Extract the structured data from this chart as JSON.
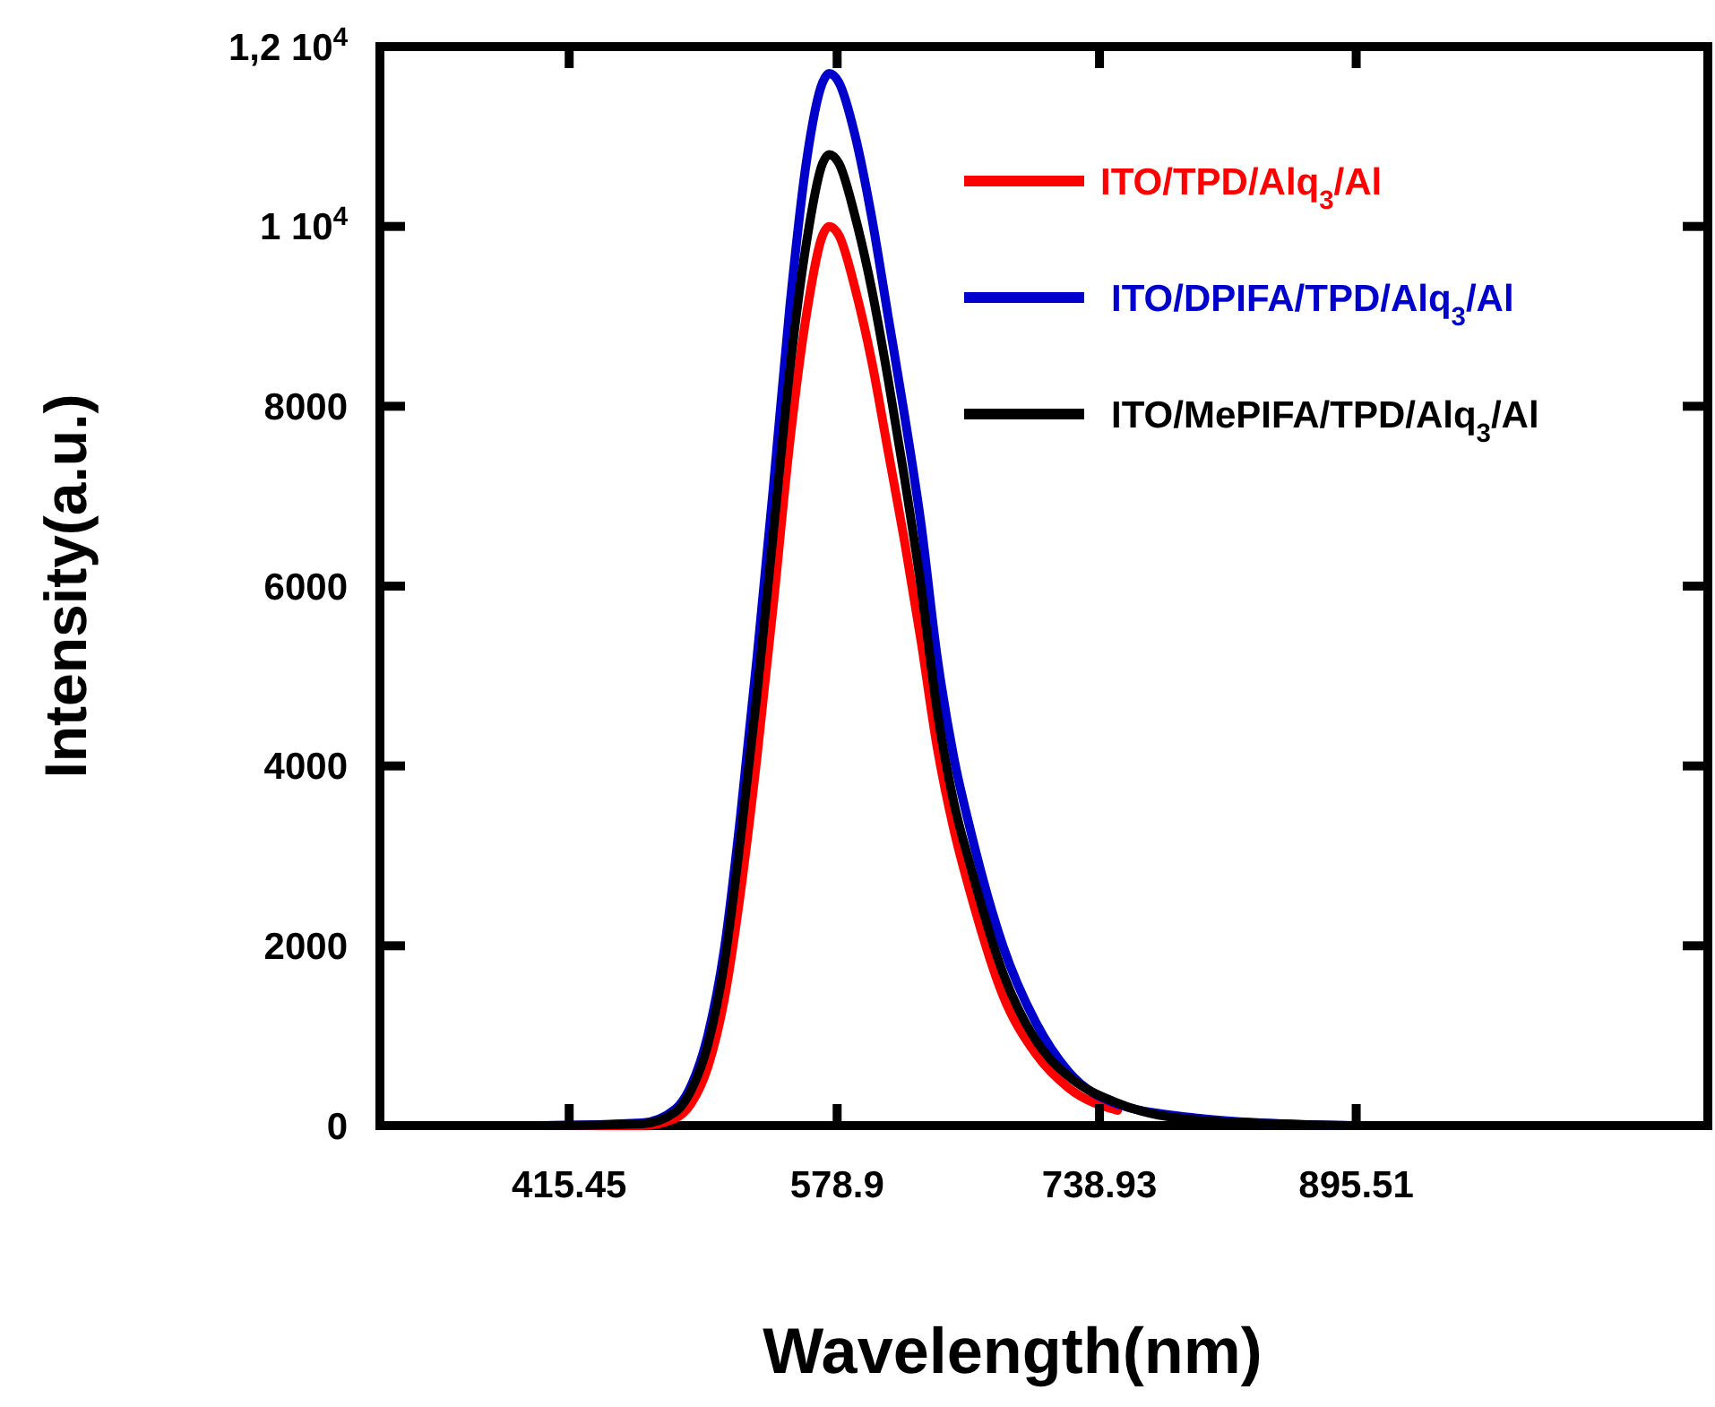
{
  "chart_data": {
    "type": "line",
    "xlabel": "Wavelength(nm)",
    "ylabel": "Intensity(a.u.)",
    "x": [
      300,
      400,
      460,
      480,
      490,
      500,
      510,
      520,
      530,
      540,
      550,
      560,
      570,
      574,
      580,
      590,
      600,
      610,
      620,
      630,
      640,
      650,
      660,
      680,
      700,
      720,
      750,
      800,
      850,
      900,
      1000,
      1110
    ],
    "xlim": [
      300,
      1110
    ],
    "xticks": [
      415.45,
      578.9,
      738.93,
      895.51
    ],
    "ylim": [
      0,
      12000
    ],
    "yticks": [
      0,
      2000,
      4000,
      6000,
      8000,
      {
        "value": 10000,
        "label": "1 10$^{4}$"
      },
      {
        "value": 12000,
        "label": "1,2 10$^{4}$"
      }
    ],
    "grid": false,
    "legend": "top right",
    "line_style": "solid",
    "series": [
      {
        "name": "ITO/TPD/Alq$_{3}$/Al",
        "color": "#ff0000",
        "values": [
          0,
          0,
          0,
          80,
          250,
          650,
          1400,
          2600,
          4100,
          5800,
          7600,
          9000,
          9900,
          10000,
          9900,
          9300,
          8500,
          7500,
          6500,
          5400,
          4200,
          3300,
          2600,
          1450,
          800,
          420,
          170,
          null,
          null,
          null,
          null,
          null
        ]
      },
      {
        "name": "ITO/DPIFA/TPD/Alq$_{3}$/Al",
        "color": "#0000cc",
        "values": [
          0,
          0,
          30,
          180,
          450,
          1000,
          1950,
          3450,
          5200,
          7100,
          9100,
          10700,
          11600,
          11700,
          11600,
          11000,
          10100,
          9000,
          7900,
          6700,
          5200,
          4100,
          3300,
          2000,
          1150,
          600,
          240,
          80,
          20,
          0,
          null,
          null
        ]
      },
      {
        "name": "ITO/MePIFA/TPD/Alq$_{3}$/Al",
        "color": "#000000",
        "values": [
          0,
          0,
          20,
          150,
          400,
          900,
          1800,
          3200,
          4800,
          6600,
          8400,
          9800,
          10700,
          10800,
          10700,
          10100,
          9300,
          8300,
          7200,
          6000,
          4600,
          3600,
          2900,
          1700,
          950,
          550,
          250,
          60,
          20,
          0,
          0,
          0
        ]
      }
    ]
  }
}
